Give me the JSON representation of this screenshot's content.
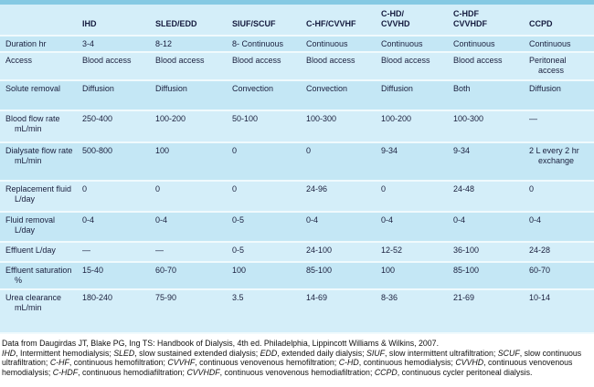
{
  "table": {
    "columns": [
      "IHD",
      "SLED/EDD",
      "SIUF/SCUF",
      "C-HF/CVVHF",
      "C-HD/\nCVVHD",
      "C-HDF\nCVVHDF",
      "CCPD"
    ],
    "rows": [
      {
        "label": "Duration hr",
        "values": [
          "3-4",
          "8-12",
          "8- Continuous",
          "Continuous",
          "Continuous",
          "Continuous",
          "Continuous"
        ]
      },
      {
        "label": "Access",
        "values": [
          "Blood access",
          "Blood access",
          "Blood access",
          "Blood access",
          "Blood access",
          "Blood access",
          "Peritoneal access"
        ]
      },
      {
        "label": "Solute removal",
        "values": [
          "Diffusion",
          "Diffusion",
          "Convection",
          "Convection",
          "Diffusion",
          "Both",
          "Diffusion"
        ]
      },
      {
        "label": "Blood flow rate mL/min",
        "values": [
          "250-400",
          "100-200",
          "50-100",
          "100-300",
          "100-200",
          "100-300",
          "—"
        ]
      },
      {
        "label": "Dialysate flow rate mL/min",
        "values": [
          "500-800",
          "100",
          "0",
          "0",
          "9-34",
          "9-34",
          "2 L every 2 hr exchange"
        ]
      },
      {
        "label": "Replacement fluid L/day",
        "values": [
          "0",
          "0",
          "0",
          "24-96",
          "0",
          "24-48",
          "0"
        ]
      },
      {
        "label": "Fluid removal L/day",
        "values": [
          "0-4",
          "0-4",
          "0-5",
          "0-4",
          "0-4",
          "0-4",
          "0-4"
        ]
      },
      {
        "label": "Effluent L/day",
        "values": [
          "—",
          "—",
          "0-5",
          "24-100",
          "12-52",
          "36-100",
          "24-28"
        ]
      },
      {
        "label": "Effluent saturation %",
        "values": [
          "15-40",
          "60-70",
          "100",
          "85-100",
          "100",
          "85-100",
          "60-70"
        ]
      },
      {
        "label": "Urea clearance mL/min",
        "values": [
          "180-240",
          "75-90",
          "3.5",
          "14-69",
          "8-36",
          "21-69",
          "10-14"
        ]
      }
    ]
  },
  "footnotes": {
    "source": "Data from Daugirdas JT, Blake PG, Ing TS: Handbook of Dialysis, 4th ed. Philadelphia, Lippincott Williams & Wilkins, 2007.",
    "abbreviations": [
      {
        "abbr": "IHD",
        "def": "Intermittent hemodialysis"
      },
      {
        "abbr": "SLED",
        "def": "slow sustained extended dialysis"
      },
      {
        "abbr": "EDD",
        "def": "extended daily dialysis"
      },
      {
        "abbr": "SIUF",
        "def": "slow intermittent ultrafiltration"
      },
      {
        "abbr": "SCUF",
        "def": "slow continuous ultrafiltration"
      },
      {
        "abbr": "C-HF",
        "def": "continuous hemofiltration"
      },
      {
        "abbr": "CVVHF",
        "def": "continuous venovenous hemofiltration"
      },
      {
        "abbr": "C-HD",
        "def": "continuous hemodialysis"
      },
      {
        "abbr": "CVVHD",
        "def": "continuous venovenous hemodialysis"
      },
      {
        "abbr": "C-HDF",
        "def": "continuous hemodiafiltration"
      },
      {
        "abbr": "CVVHDF",
        "def": "continuous venovenous hemodiafiltration"
      },
      {
        "abbr": "CCPD",
        "def": "continuous cycler peritoneal dialysis"
      }
    ]
  },
  "colors": {
    "top_strip": "#85c9e3",
    "row_dark": "#c4e7f5",
    "row_light": "#d4eef9",
    "separator": "#f0fafd",
    "text": "#1a1f3d"
  }
}
